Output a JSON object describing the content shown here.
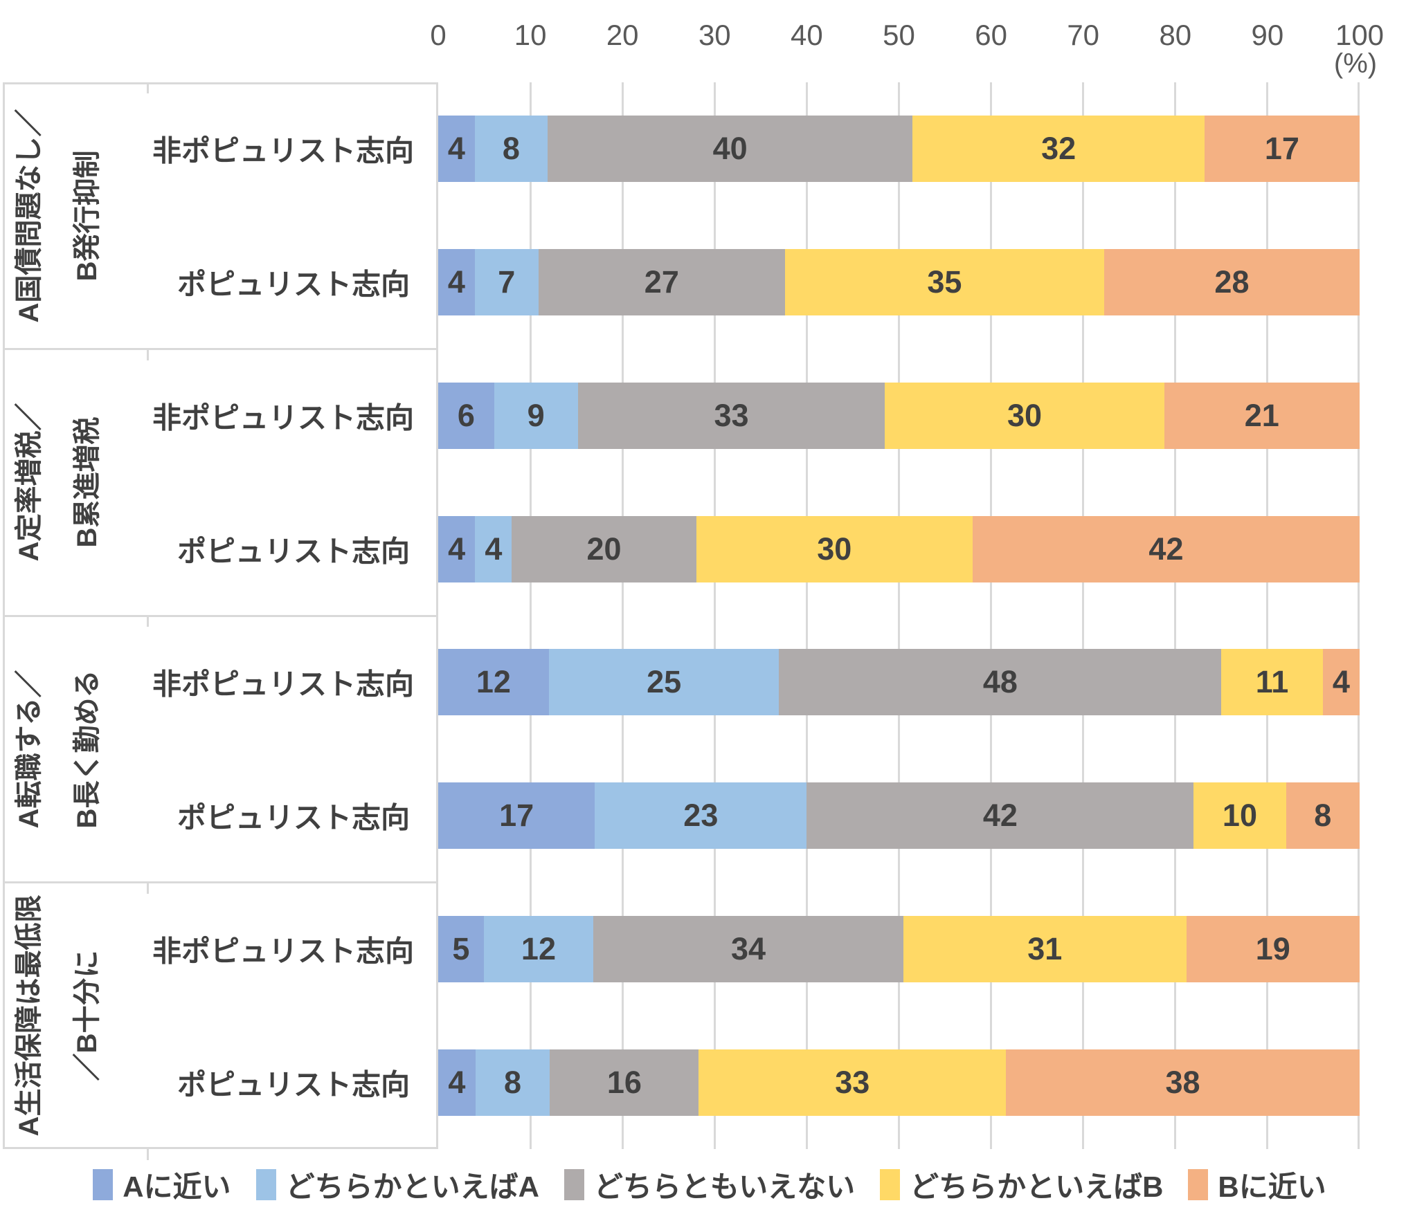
{
  "axis": {
    "tick_labels": [
      "0",
      "10",
      "20",
      "30",
      "40",
      "50",
      "60",
      "70",
      "80",
      "90",
      "100"
    ],
    "unit_label": "(%)"
  },
  "chart_data": {
    "type": "bar",
    "orientation": "horizontal_stacked",
    "unit": "%",
    "xlim": [
      0,
      100
    ],
    "x_ticks": [
      0,
      10,
      20,
      30,
      40,
      50,
      60,
      70,
      80,
      90,
      100
    ],
    "grid": true,
    "legend_position": "bottom",
    "series_names": [
      "Aに近い",
      "どちらかといえばA",
      "どちらともいえない",
      "どちらかといえばB",
      "Bに近い"
    ],
    "series_colors": [
      "#8EAADB",
      "#9DC3E6",
      "#AFABAB",
      "#FFD966",
      "#F4B183"
    ],
    "groups": [
      {
        "label_lines": [
          "A国債問題なし／",
          "B発行抑制"
        ],
        "rows": [
          {
            "label": "非ポピュリスト志向",
            "values": [
              4,
              8,
              40,
              32,
              17
            ]
          },
          {
            "label": "ポピュリスト志向",
            "values": [
              4,
              7,
              27,
              35,
              28
            ]
          }
        ]
      },
      {
        "label_lines": [
          "A定率増税／",
          "B累進増税"
        ],
        "rows": [
          {
            "label": "非ポピュリスト志向",
            "values": [
              6,
              9,
              33,
              30,
              21
            ]
          },
          {
            "label": "ポピュリスト志向",
            "values": [
              4,
              4,
              20,
              30,
              42
            ]
          }
        ]
      },
      {
        "label_lines": [
          "A転職する／",
          "B長く勤める"
        ],
        "rows": [
          {
            "label": "非ポピュリスト志向",
            "values": [
              12,
              25,
              48,
              11,
              4
            ]
          },
          {
            "label": "ポピュリスト志向",
            "values": [
              17,
              23,
              42,
              10,
              8
            ]
          }
        ]
      },
      {
        "label_lines": [
          "A生活保障は最低限",
          "／B十分に"
        ],
        "rows": [
          {
            "label": "非ポピュリスト志向",
            "values": [
              5,
              12,
              34,
              31,
              19
            ]
          },
          {
            "label": "ポピュリスト志向",
            "values": [
              4,
              8,
              16,
              33,
              38
            ]
          }
        ]
      }
    ],
    "legend_labels": [
      "Aに近い",
      "どちらかといえばA",
      "どちらともいえない",
      "どちらかといえばB",
      "Bに近い"
    ]
  }
}
